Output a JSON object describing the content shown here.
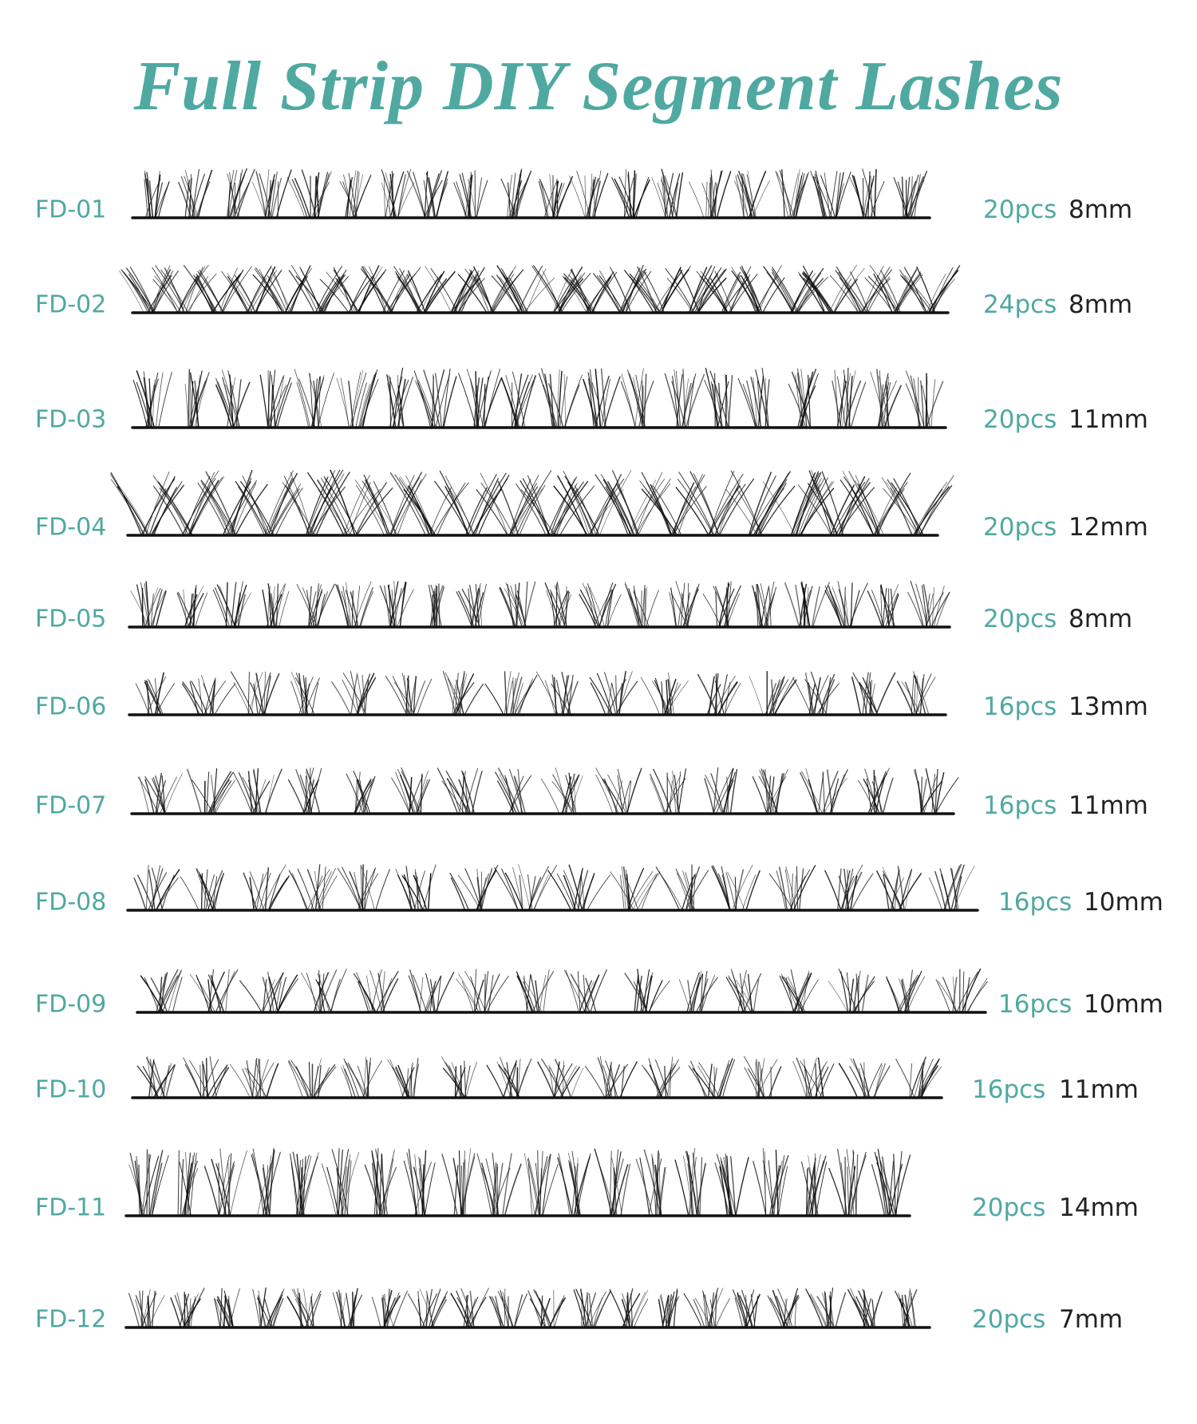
{
  "title": "Full Strip DIY Segment Lashes",
  "colors": {
    "accent": "#4fa9a1",
    "text": "#222222",
    "lash": "#111111"
  },
  "products": [
    {
      "code": "FD-01",
      "pcs": "20pcs",
      "length": "8mm"
    },
    {
      "code": "FD-02",
      "pcs": "24pcs",
      "length": "8mm"
    },
    {
      "code": "FD-03",
      "pcs": "20pcs",
      "length": "11mm"
    },
    {
      "code": "FD-04",
      "pcs": "20pcs",
      "length": "12mm"
    },
    {
      "code": "FD-05",
      "pcs": "20pcs",
      "length": "8mm"
    },
    {
      "code": "FD-06",
      "pcs": "16pcs",
      "length": "13mm"
    },
    {
      "code": "FD-07",
      "pcs": "16pcs",
      "length": "11mm"
    },
    {
      "code": "FD-08",
      "pcs": "16pcs",
      "length": "10mm"
    },
    {
      "code": "FD-09",
      "pcs": "16pcs",
      "length": "10mm"
    },
    {
      "code": "FD-10",
      "pcs": "16pcs",
      "length": "11mm"
    },
    {
      "code": "FD-11",
      "pcs": "20pcs",
      "length": "14mm"
    },
    {
      "code": "FD-12",
      "pcs": "20pcs",
      "length": "7mm"
    }
  ]
}
